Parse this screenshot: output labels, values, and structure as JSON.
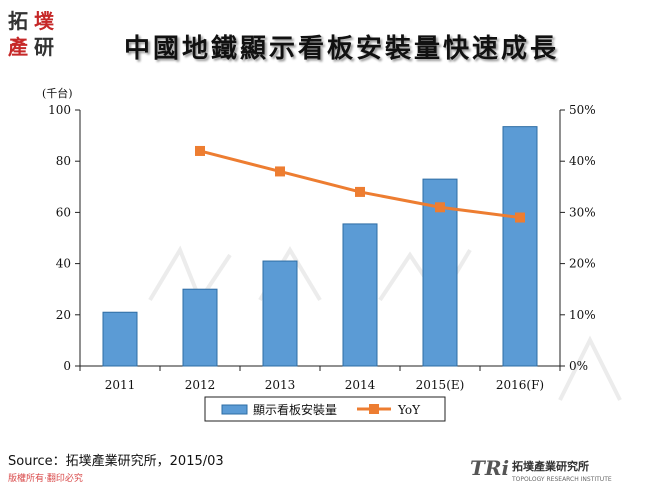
{
  "header": {
    "title": "中國地鐵顯示看板安裝量快速成長",
    "logo_text": "拓墣產研"
  },
  "footer": {
    "source": "Source：拓墣產業研究所，2015/03",
    "copyright": "版權所有‧翻印必究",
    "brand_mark": "TRi",
    "brand_name": "拓墣產業研究所",
    "brand_sub": "TOPOLOGY RESEARCH INSTITUTE"
  },
  "colors": {
    "bar": "#5b9bd5",
    "bar_edge": "#2e6da4",
    "line": "#ed7d31",
    "logo_red": "#c62828"
  },
  "chart_data": {
    "type": "bar",
    "title": "中國地鐵顯示看板安裝量快速成長",
    "categories": [
      "2011",
      "2012",
      "2013",
      "2014",
      "2015(E)",
      "2016(F)"
    ],
    "y_unit": "(千台)",
    "ylim": [
      0,
      100
    ],
    "yticks": [
      "0",
      "20",
      "40",
      "60",
      "80",
      "100"
    ],
    "y2lim": [
      0,
      50
    ],
    "y2ticks": [
      "0%",
      "10%",
      "20%",
      "30%",
      "40%",
      "50%"
    ],
    "grid": false,
    "legend_position": "bottom",
    "series": [
      {
        "name": "顯示看板安裝量",
        "type": "bar",
        "axis": "left",
        "values": [
          21,
          30,
          41,
          55.5,
          73,
          93.5
        ]
      },
      {
        "name": "YoY",
        "type": "line",
        "axis": "right",
        "values": [
          null,
          42,
          38,
          34,
          31,
          29
        ]
      }
    ]
  }
}
